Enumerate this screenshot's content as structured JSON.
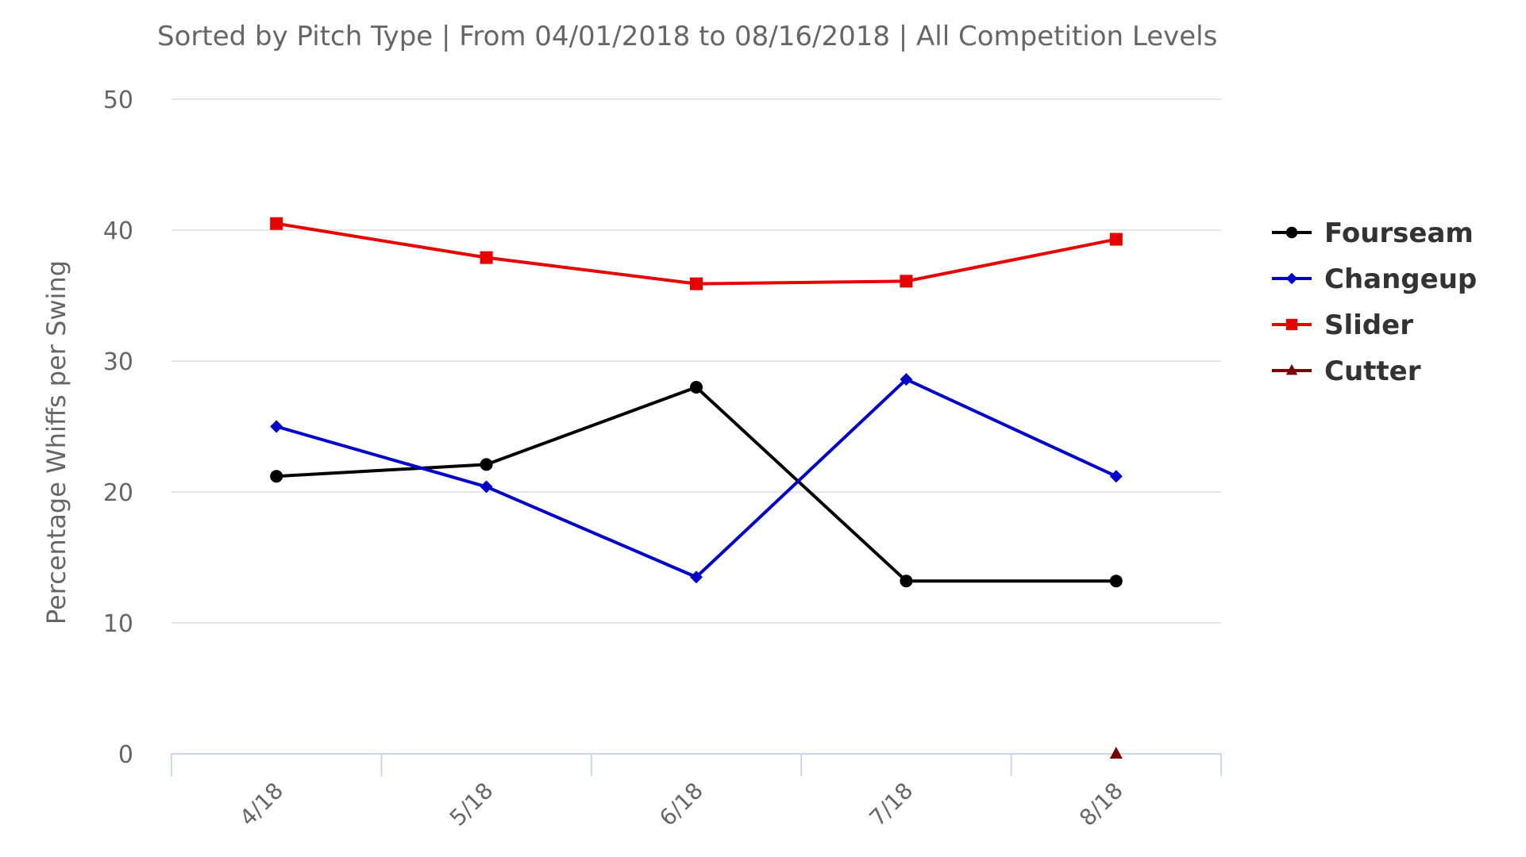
{
  "subtitle": "Sorted by Pitch Type | From 04/01/2018 to 08/16/2018 | All Competition Levels",
  "colors": {
    "Fourseam": "#000000",
    "Changeup": "#0000cc",
    "Slider": "#e60000",
    "Cutter": "#7a0000",
    "grid": "#e6e6e6",
    "axis_text": "#666666"
  },
  "chart_data": {
    "type": "line",
    "title": "",
    "subtitle": "Sorted by Pitch Type | From 04/01/2018 to 08/16/2018 | All Competition Levels",
    "xlabel": "",
    "ylabel": "Percentage Whiffs per Swing",
    "categories": [
      "4/18",
      "5/18",
      "6/18",
      "7/18",
      "8/18"
    ],
    "ylim": [
      0,
      50
    ],
    "yticks": [
      0,
      10,
      20,
      30,
      40,
      50
    ],
    "grid": true,
    "legend_position": "right",
    "series": [
      {
        "name": "Fourseam",
        "marker": "circle",
        "color": "#000000",
        "values": [
          21.2,
          22.1,
          28.0,
          13.2,
          13.2
        ]
      },
      {
        "name": "Changeup",
        "marker": "diamond",
        "color": "#0000cc",
        "values": [
          25.0,
          20.4,
          13.5,
          28.6,
          21.2
        ]
      },
      {
        "name": "Slider",
        "marker": "square",
        "color": "#e60000",
        "values": [
          40.5,
          37.9,
          35.9,
          36.1,
          39.3
        ]
      },
      {
        "name": "Cutter",
        "marker": "triangle",
        "color": "#7a0000",
        "values": [
          null,
          null,
          null,
          null,
          0
        ]
      }
    ]
  }
}
